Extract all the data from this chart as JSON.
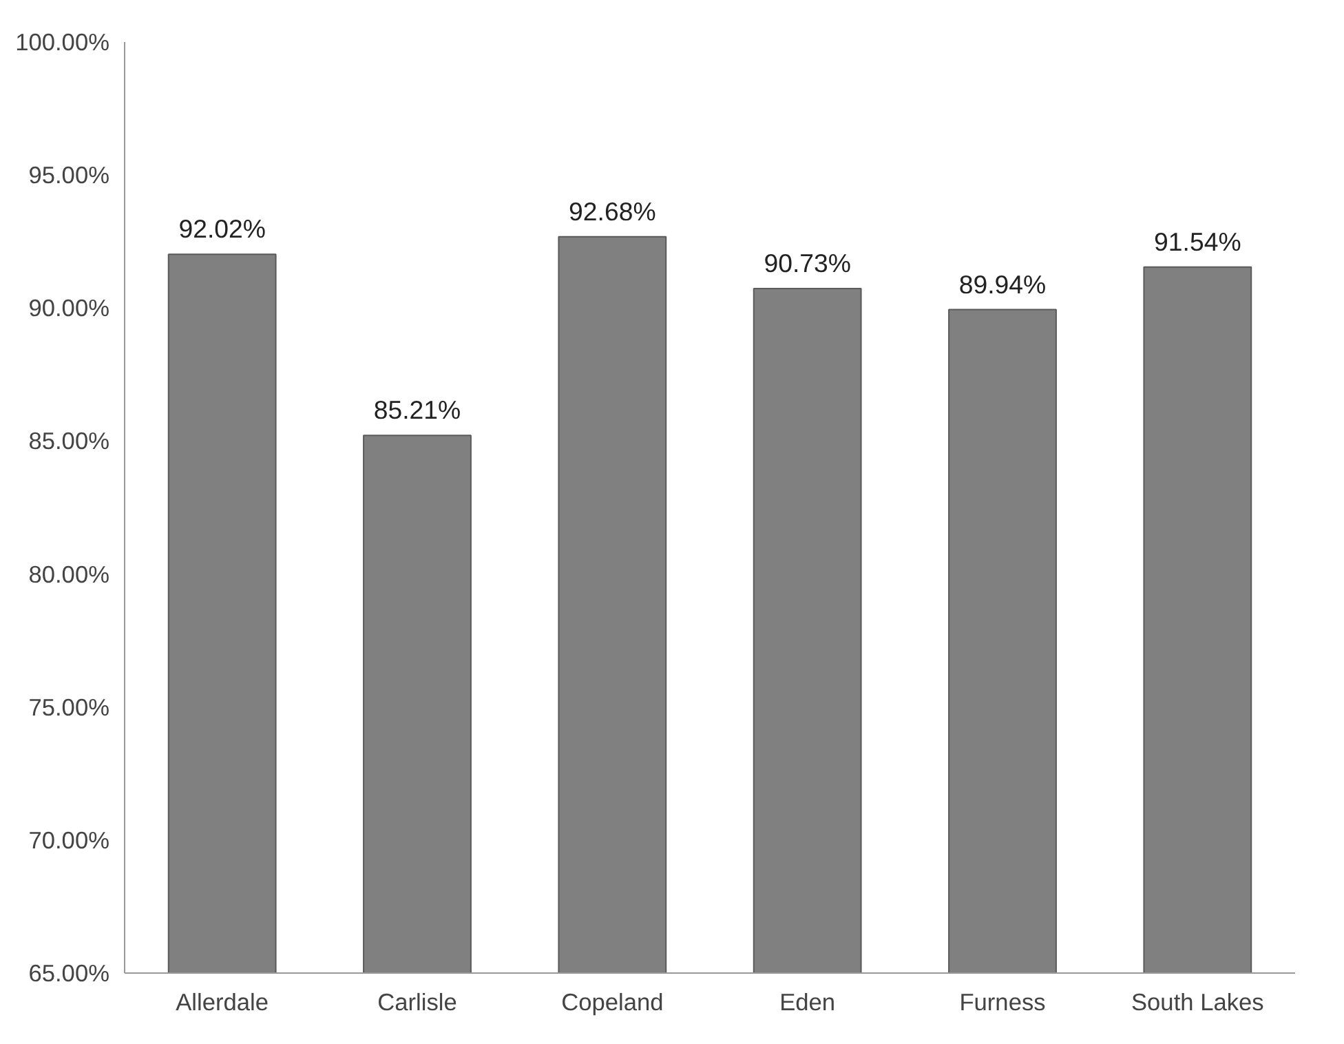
{
  "chart_data": {
    "type": "bar",
    "categories": [
      "Allerdale",
      "Carlisle",
      "Copeland",
      "Eden",
      "Furness",
      "South Lakes"
    ],
    "values": [
      92.02,
      85.21,
      92.68,
      90.73,
      89.94,
      91.54
    ],
    "value_labels": [
      "92.02%",
      "85.21%",
      "92.68%",
      "90.73%",
      "89.94%",
      "91.54%"
    ],
    "color": "#808080",
    "ylim": [
      65,
      100
    ],
    "yticks": [
      {
        "value": 65,
        "label": "65.00%"
      },
      {
        "value": 70,
        "label": "70.00%"
      },
      {
        "value": 75,
        "label": "75.00%"
      },
      {
        "value": 80,
        "label": "80.00%"
      },
      {
        "value": 85,
        "label": "85.00%"
      },
      {
        "value": 90,
        "label": "90.00%"
      },
      {
        "value": 95,
        "label": "95.00%"
      },
      {
        "value": 100,
        "label": "100.00%"
      }
    ],
    "grid": false
  }
}
